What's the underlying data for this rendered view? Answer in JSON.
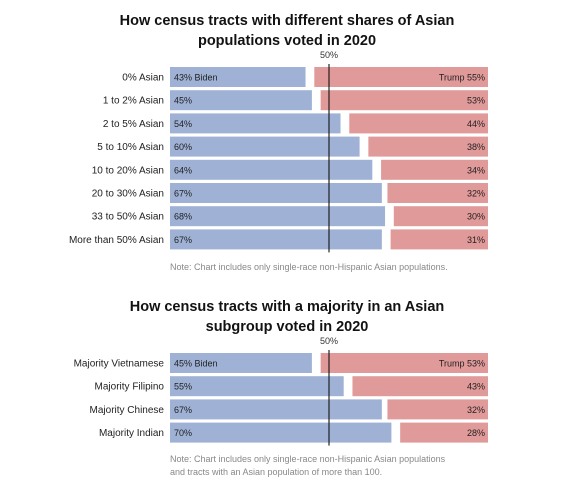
{
  "colors": {
    "biden": "#9fb2d6",
    "trump": "#e19a9a",
    "label_text": "#222222",
    "note_text": "#888888",
    "center_line": "#121212"
  },
  "chart_data": [
    {
      "type": "bar",
      "subtype": "diverging-stacked-horizontal",
      "title": [
        "How census tracts with different shares of Asian",
        "populations voted in 2020"
      ],
      "midline_label": "50%",
      "categories": [
        "0% Asian",
        "1 to 2% Asian",
        "2 to 5% Asian",
        "5 to 10% Asian",
        "10 to 20% Asian",
        "20 to 30% Asian",
        "33 to 50% Asian",
        "More than 50% Asian"
      ],
      "series": [
        {
          "name": "Biden",
          "values": [
            43,
            45,
            54,
            60,
            64,
            67,
            68,
            67
          ]
        },
        {
          "name": "Trump",
          "values": [
            55,
            53,
            44,
            38,
            34,
            32,
            30,
            31
          ]
        }
      ],
      "value_labels": {
        "Biden": [
          "43% Biden",
          "45%",
          "54%",
          "60%",
          "64%",
          "67%",
          "68%",
          "67%"
        ],
        "Trump": [
          "Trump 55%",
          "53%",
          "44%",
          "38%",
          "34%",
          "32%",
          "30%",
          "31%"
        ]
      },
      "xlim": [
        0,
        100
      ],
      "note": [
        "Note: Chart includes only single-race non-Hispanic Asian populations."
      ]
    },
    {
      "type": "bar",
      "subtype": "diverging-stacked-horizontal",
      "title": [
        "How census tracts with a majority in an Asian",
        "subgroup voted in 2020"
      ],
      "midline_label": "50%",
      "categories": [
        "Majority Vietnamese",
        "Majority Filipino",
        "Majority Chinese",
        "Majority Indian"
      ],
      "series": [
        {
          "name": "Biden",
          "values": [
            45,
            55,
            67,
            70
          ]
        },
        {
          "name": "Trump",
          "values": [
            53,
            43,
            32,
            28
          ]
        }
      ],
      "value_labels": {
        "Biden": [
          "45% Biden",
          "55%",
          "67%",
          "70%"
        ],
        "Trump": [
          "Trump 53%",
          "43%",
          "32%",
          "28%"
        ]
      },
      "xlim": [
        0,
        100
      ],
      "note": [
        "Note: Chart includes only single-race non-Hispanic Asian populations",
        "and tracts with an Asian population of more than 100."
      ]
    }
  ]
}
